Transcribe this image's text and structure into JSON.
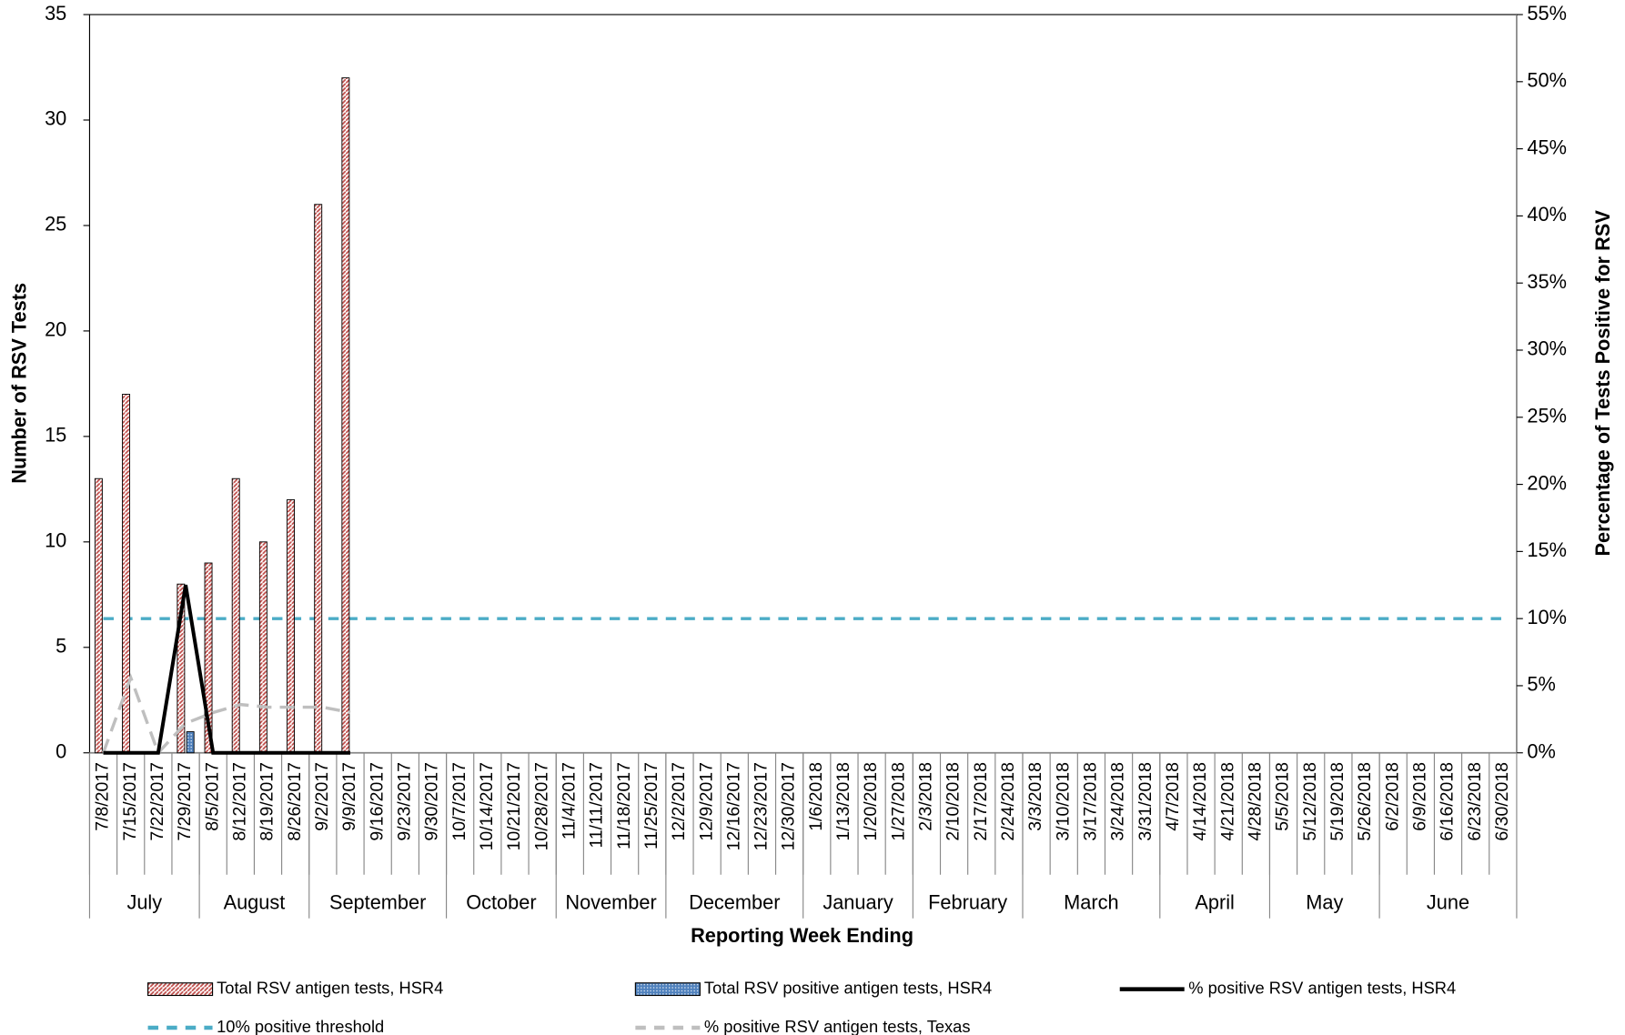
{
  "chart_data": {
    "type": "bar",
    "categories": [
      "7/8/2017",
      "7/15/2017",
      "7/22/2017",
      "7/29/2017",
      "8/5/2017",
      "8/12/2017",
      "8/19/2017",
      "8/26/2017",
      "9/2/2017",
      "9/9/2017",
      "9/16/2017",
      "9/23/2017",
      "9/30/2017",
      "10/7/2017",
      "10/14/2017",
      "10/21/2017",
      "10/28/2017",
      "11/4/2017",
      "11/11/2017",
      "11/18/2017",
      "11/25/2017",
      "12/2/2017",
      "12/9/2017",
      "12/16/2017",
      "12/23/2017",
      "12/30/2017",
      "1/6/2018",
      "1/13/2018",
      "1/20/2018",
      "1/27/2018",
      "2/3/2018",
      "2/10/2018",
      "2/17/2018",
      "2/24/2018",
      "3/3/2018",
      "3/10/2018",
      "3/17/2018",
      "3/24/2018",
      "3/31/2018",
      "4/7/2018",
      "4/14/2018",
      "4/21/2018",
      "4/28/2018",
      "5/5/2018",
      "5/12/2018",
      "5/19/2018",
      "5/26/2018",
      "6/2/2018",
      "6/9/2018",
      "6/16/2018",
      "6/23/2018",
      "6/30/2018"
    ],
    "months": [
      "July",
      "August",
      "September",
      "October",
      "November",
      "December",
      "January",
      "February",
      "March",
      "April",
      "May",
      "June"
    ],
    "xlabel": "Reporting Week Ending",
    "ylabel": "Number of RSV Tests",
    "y2label": "Percentage of Tests Positive for RSV",
    "ylim": [
      0,
      35
    ],
    "yticks": [
      0,
      5,
      10,
      15,
      20,
      25,
      30,
      35
    ],
    "y2lim": [
      0,
      55
    ],
    "y2ticks": [
      {
        "value": 0,
        "label": "0%"
      },
      {
        "value": 5,
        "label": "5%"
      },
      {
        "value": 10,
        "label": "10%"
      },
      {
        "value": 15,
        "label": "15%"
      },
      {
        "value": 20,
        "label": "20%"
      },
      {
        "value": 25,
        "label": "25%"
      },
      {
        "value": 30,
        "label": "30%"
      },
      {
        "value": 35,
        "label": "35%"
      },
      {
        "value": 40,
        "label": "40%"
      },
      {
        "value": 45,
        "label": "45%"
      },
      {
        "value": 50,
        "label": "50%"
      },
      {
        "value": 55,
        "label": "55%"
      }
    ],
    "series": [
      {
        "name": "Total RSV antigen tests, HSR4",
        "type": "bar",
        "color": "#c0504d",
        "values": [
          13,
          17,
          0,
          8,
          9,
          13,
          10,
          12,
          26,
          32,
          null,
          null,
          null,
          null,
          null,
          null,
          null,
          null,
          null,
          null,
          null,
          null,
          null,
          null,
          null,
          null,
          null,
          null,
          null,
          null,
          null,
          null,
          null,
          null,
          null,
          null,
          null,
          null,
          null,
          null,
          null,
          null,
          null,
          null,
          null,
          null,
          null,
          null,
          null,
          null,
          null,
          null
        ]
      },
      {
        "name": "Total RSV positive antigen tests, HSR4",
        "type": "bar",
        "color": "#4f81bd",
        "values": [
          0,
          0,
          0,
          1,
          0,
          0,
          0,
          0,
          0,
          0,
          null,
          null,
          null,
          null,
          null,
          null,
          null,
          null,
          null,
          null,
          null,
          null,
          null,
          null,
          null,
          null,
          null,
          null,
          null,
          null,
          null,
          null,
          null,
          null,
          null,
          null,
          null,
          null,
          null,
          null,
          null,
          null,
          null,
          null,
          null,
          null,
          null,
          null,
          null,
          null,
          null,
          null
        ]
      },
      {
        "name": "% positive RSV antigen tests, HSR4",
        "type": "line",
        "axis": "y2",
        "color": "#000000",
        "dash": false,
        "values": [
          0,
          0,
          0,
          12.5,
          0,
          0,
          0,
          0,
          0,
          0,
          null,
          null,
          null,
          null,
          null,
          null,
          null,
          null,
          null,
          null,
          null,
          null,
          null,
          null,
          null,
          null,
          null,
          null,
          null,
          null,
          null,
          null,
          null,
          null,
          null,
          null,
          null,
          null,
          null,
          null,
          null,
          null,
          null,
          null,
          null,
          null,
          null,
          null,
          null,
          null,
          null,
          null
        ]
      },
      {
        "name": "10% positive threshold",
        "type": "line",
        "axis": "y2",
        "color": "#4bacc6",
        "dash": true,
        "values": [
          10,
          10,
          10,
          10,
          10,
          10,
          10,
          10,
          10,
          10,
          10,
          10,
          10,
          10,
          10,
          10,
          10,
          10,
          10,
          10,
          10,
          10,
          10,
          10,
          10,
          10,
          10,
          10,
          10,
          10,
          10,
          10,
          10,
          10,
          10,
          10,
          10,
          10,
          10,
          10,
          10,
          10,
          10,
          10,
          10,
          10,
          10,
          10,
          10,
          10,
          10,
          10
        ]
      },
      {
        "name": "% positive RSV antigen tests, Texas",
        "type": "line",
        "axis": "y2",
        "color": "#bfbfbf",
        "dash": true,
        "values": [
          0,
          5.6,
          0,
          2.2,
          3.0,
          3.6,
          3.4,
          3.4,
          3.4,
          3.0,
          null,
          null,
          null,
          null,
          null,
          null,
          null,
          null,
          null,
          null,
          null,
          null,
          null,
          null,
          null,
          null,
          null,
          null,
          null,
          null,
          null,
          null,
          null,
          null,
          null,
          null,
          null,
          null,
          null,
          null,
          null,
          null,
          null,
          null,
          null,
          null,
          null,
          null,
          null,
          null,
          null,
          null
        ]
      }
    ]
  }
}
